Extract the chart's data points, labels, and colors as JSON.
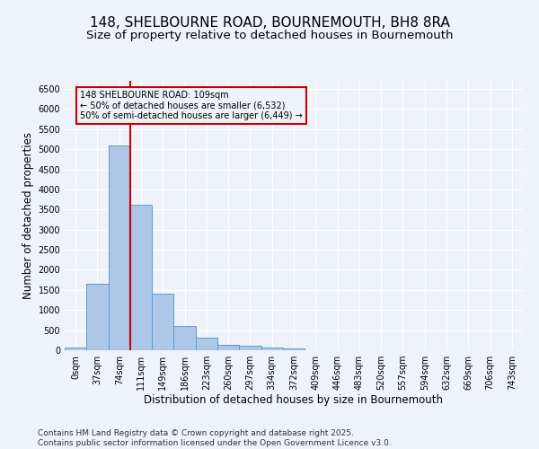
{
  "title_line1": "148, SHELBOURNE ROAD, BOURNEMOUTH, BH8 8RA",
  "title_line2": "Size of property relative to detached houses in Bournemouth",
  "xlabel": "Distribution of detached houses by size in Bournemouth",
  "ylabel": "Number of detached properties",
  "footer_line1": "Contains HM Land Registry data © Crown copyright and database right 2025.",
  "footer_line2": "Contains public sector information licensed under the Open Government Licence v3.0.",
  "bar_labels": [
    "0sqm",
    "37sqm",
    "74sqm",
    "111sqm",
    "149sqm",
    "186sqm",
    "223sqm",
    "260sqm",
    "297sqm",
    "334sqm",
    "372sqm",
    "409sqm",
    "446sqm",
    "483sqm",
    "520sqm",
    "557sqm",
    "594sqm",
    "632sqm",
    "669sqm",
    "706sqm",
    "743sqm"
  ],
  "bar_values": [
    60,
    1650,
    5100,
    3620,
    1400,
    610,
    310,
    145,
    110,
    60,
    35,
    0,
    0,
    0,
    0,
    0,
    0,
    0,
    0,
    0,
    0
  ],
  "bar_color": "#aec6e8",
  "bar_edge_color": "#5b9bd5",
  "vline_color": "#cc0000",
  "annotation_text": "148 SHELBOURNE ROAD: 109sqm\n← 50% of detached houses are smaller (6,532)\n50% of semi-detached houses are larger (6,449) →",
  "annotation_box_color": "#cc0000",
  "ylim": [
    0,
    6700
  ],
  "yticks": [
    0,
    500,
    1000,
    1500,
    2000,
    2500,
    3000,
    3500,
    4000,
    4500,
    5000,
    5500,
    6000,
    6500
  ],
  "bg_color": "#eef2f9",
  "grid_color": "#ffffff",
  "title_fontsize": 11,
  "subtitle_fontsize": 9.5,
  "axis_label_fontsize": 8.5,
  "tick_fontsize": 7,
  "footer_fontsize": 6.5
}
